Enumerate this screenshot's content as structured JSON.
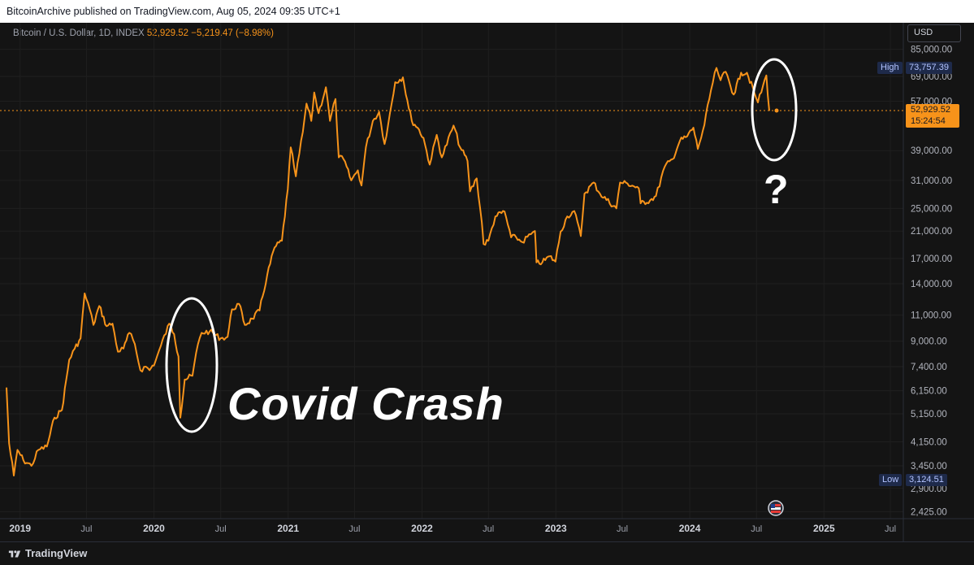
{
  "header": {
    "published": "BitcoinArchive published on TradingView.com, Aug 05, 2024 09:35 UTC+1"
  },
  "legend": {
    "symbol": "Bitcoin / U.S. Dollar, 1D, INDEX",
    "last": "52,929.52",
    "change": "−5,219.47 (−8.98%)"
  },
  "currency": "USD",
  "high_tag": {
    "label": "High",
    "value": "73,757.39"
  },
  "low_tag": {
    "label": "Low",
    "value": "3,124.51"
  },
  "price_tag": {
    "price": "52,929.52",
    "countdown": "15:24:54"
  },
  "annotations": {
    "covid": "Covid Crash",
    "question": "?"
  },
  "footer": {
    "brand": "TradingView"
  },
  "colors": {
    "line": "#f7931a",
    "background": "#141414",
    "text": "#d1d4dc",
    "annotation": "#ffffff"
  },
  "chart_data": {
    "type": "line",
    "title": "Bitcoin / U.S. Dollar, 1D, INDEX",
    "y_scale": "log",
    "ylim": [
      2300,
      90000
    ],
    "y_ticks": [
      {
        "value": 85000,
        "label": "85,000.00"
      },
      {
        "value": 69000,
        "label": "69,000.00"
      },
      {
        "value": 57000,
        "label": "57,000.00"
      },
      {
        "value": 39000,
        "label": "39,000.00"
      },
      {
        "value": 31000,
        "label": "31,000.00"
      },
      {
        "value": 25000,
        "label": "25,000.00"
      },
      {
        "value": 21000,
        "label": "21,000.00"
      },
      {
        "value": 17000,
        "label": "17,000.00"
      },
      {
        "value": 14000,
        "label": "14,000.00"
      },
      {
        "value": 11000,
        "label": "11,000.00"
      },
      {
        "value": 9000,
        "label": "9,000.00"
      },
      {
        "value": 7400,
        "label": "7,400.00"
      },
      {
        "value": 6150,
        "label": "6,150.00"
      },
      {
        "value": 5150,
        "label": "5,150.00"
      },
      {
        "value": 4150,
        "label": "4,150.00"
      },
      {
        "value": 3450,
        "label": "3,450.00"
      },
      {
        "value": 2900,
        "label": "2,900.00"
      },
      {
        "value": 2425,
        "label": "2,425.00"
      }
    ],
    "x_ticks": [
      {
        "date": "2019-01-01",
        "label": "2019",
        "bold": true
      },
      {
        "date": "2019-07-01",
        "label": "Jul",
        "bold": false
      },
      {
        "date": "2020-01-01",
        "label": "2020",
        "bold": true
      },
      {
        "date": "2020-07-01",
        "label": "Jul",
        "bold": false
      },
      {
        "date": "2021-01-01",
        "label": "2021",
        "bold": true
      },
      {
        "date": "2021-07-01",
        "label": "Jul",
        "bold": false
      },
      {
        "date": "2022-01-01",
        "label": "2022",
        "bold": true
      },
      {
        "date": "2022-07-01",
        "label": "Jul",
        "bold": false
      },
      {
        "date": "2023-01-01",
        "label": "2023",
        "bold": true
      },
      {
        "date": "2023-07-01",
        "label": "Jul",
        "bold": false
      },
      {
        "date": "2024-01-01",
        "label": "2024",
        "bold": true
      },
      {
        "date": "2024-07-01",
        "label": "Jul",
        "bold": false
      },
      {
        "date": "2025-01-01",
        "label": "2025",
        "bold": true
      },
      {
        "date": "2025-07-01",
        "label": "Jul",
        "bold": false
      }
    ],
    "xlim": [
      "2018-11-25",
      "2025-08-01"
    ],
    "current_price": 52929.52,
    "series": [
      {
        "points": [
          [
            "2018-11-25",
            6300
          ],
          [
            "2018-12-02",
            4100
          ],
          [
            "2018-12-15",
            3200
          ],
          [
            "2018-12-25",
            3900
          ],
          [
            "2019-01-10",
            3600
          ],
          [
            "2019-02-01",
            3450
          ],
          [
            "2019-02-20",
            3900
          ],
          [
            "2019-03-15",
            4000
          ],
          [
            "2019-04-05",
            5000
          ],
          [
            "2019-04-25",
            5300
          ],
          [
            "2019-05-15",
            7800
          ],
          [
            "2019-05-30",
            8500
          ],
          [
            "2019-06-15",
            9200
          ],
          [
            "2019-06-26",
            13000
          ],
          [
            "2019-07-10",
            11500
          ],
          [
            "2019-07-20",
            10200
          ],
          [
            "2019-08-05",
            11800
          ],
          [
            "2019-08-25",
            10100
          ],
          [
            "2019-09-10",
            10300
          ],
          [
            "2019-09-25",
            8300
          ],
          [
            "2019-10-10",
            8500
          ],
          [
            "2019-10-26",
            9600
          ],
          [
            "2019-11-10",
            8800
          ],
          [
            "2019-11-25",
            7200
          ],
          [
            "2019-12-10",
            7400
          ],
          [
            "2019-12-20",
            7200
          ],
          [
            "2020-01-05",
            7700
          ],
          [
            "2020-01-20",
            8700
          ],
          [
            "2020-02-12",
            10300
          ],
          [
            "2020-02-25",
            9500
          ],
          [
            "2020-03-08",
            8000
          ],
          [
            "2020-03-13",
            5000
          ],
          [
            "2020-03-25",
            6700
          ],
          [
            "2020-04-15",
            6900
          ],
          [
            "2020-04-30",
            8800
          ],
          [
            "2020-05-10",
            9600
          ],
          [
            "2020-06-01",
            9700
          ],
          [
            "2020-07-01",
            9200
          ],
          [
            "2020-07-20",
            9300
          ],
          [
            "2020-08-01",
            11500
          ],
          [
            "2020-08-20",
            12000
          ],
          [
            "2020-09-05",
            10200
          ],
          [
            "2020-09-25",
            10700
          ],
          [
            "2020-10-15",
            11400
          ],
          [
            "2020-11-05",
            15000
          ],
          [
            "2020-11-25",
            18500
          ],
          [
            "2020-12-15",
            19500
          ],
          [
            "2020-12-31",
            29000
          ],
          [
            "2021-01-08",
            40000
          ],
          [
            "2021-01-22",
            32000
          ],
          [
            "2021-02-10",
            45000
          ],
          [
            "2021-02-20",
            56000
          ],
          [
            "2021-03-05",
            49000
          ],
          [
            "2021-03-13",
            61000
          ],
          [
            "2021-03-25",
            52000
          ],
          [
            "2021-04-14",
            63500
          ],
          [
            "2021-04-25",
            49000
          ],
          [
            "2021-05-10",
            58000
          ],
          [
            "2021-05-19",
            37000
          ],
          [
            "2021-06-01",
            36500
          ],
          [
            "2021-06-22",
            31000
          ],
          [
            "2021-07-10",
            33500
          ],
          [
            "2021-07-20",
            29800
          ],
          [
            "2021-08-01",
            40000
          ],
          [
            "2021-08-20",
            49000
          ],
          [
            "2021-09-06",
            52500
          ],
          [
            "2021-09-21",
            41000
          ],
          [
            "2021-10-01",
            48000
          ],
          [
            "2021-10-20",
            66000
          ],
          [
            "2021-11-10",
            68500
          ],
          [
            "2021-11-26",
            54000
          ],
          [
            "2021-12-04",
            49000
          ],
          [
            "2021-12-20",
            46500
          ],
          [
            "2022-01-05",
            43000
          ],
          [
            "2022-01-22",
            35000
          ],
          [
            "2022-02-10",
            44000
          ],
          [
            "2022-02-24",
            37000
          ],
          [
            "2022-03-28",
            47300
          ],
          [
            "2022-04-15",
            40000
          ],
          [
            "2022-05-05",
            36000
          ],
          [
            "2022-05-12",
            28500
          ],
          [
            "2022-05-30",
            31500
          ],
          [
            "2022-06-13",
            22500
          ],
          [
            "2022-06-18",
            19000
          ],
          [
            "2022-07-01",
            19500
          ],
          [
            "2022-07-20",
            23500
          ],
          [
            "2022-08-14",
            24400
          ],
          [
            "2022-09-01",
            20000
          ],
          [
            "2022-09-15",
            20000
          ],
          [
            "2022-10-01",
            19300
          ],
          [
            "2022-10-25",
            20500
          ],
          [
            "2022-11-05",
            21000
          ],
          [
            "2022-11-09",
            16500
          ],
          [
            "2022-11-25",
            16500
          ],
          [
            "2022-12-15",
            17300
          ],
          [
            "2022-12-31",
            16600
          ],
          [
            "2023-01-14",
            20900
          ],
          [
            "2023-02-01",
            23500
          ],
          [
            "2023-02-20",
            24500
          ],
          [
            "2023-03-10",
            20200
          ],
          [
            "2023-03-20",
            28000
          ],
          [
            "2023-04-14",
            30500
          ],
          [
            "2023-05-01",
            28000
          ],
          [
            "2023-06-15",
            25000
          ],
          [
            "2023-06-25",
            30500
          ],
          [
            "2023-07-15",
            30300
          ],
          [
            "2023-08-15",
            29200
          ],
          [
            "2023-08-20",
            26000
          ],
          [
            "2023-09-15",
            26600
          ],
          [
            "2023-10-01",
            27500
          ],
          [
            "2023-10-25",
            34500
          ],
          [
            "2023-11-15",
            36500
          ],
          [
            "2023-12-05",
            42000
          ],
          [
            "2023-12-25",
            43500
          ],
          [
            "2024-01-11",
            46500
          ],
          [
            "2024-01-23",
            39500
          ],
          [
            "2024-02-10",
            47500
          ],
          [
            "2024-02-28",
            62000
          ],
          [
            "2024-03-14",
            73700
          ],
          [
            "2024-03-25",
            67000
          ],
          [
            "2024-04-08",
            71500
          ],
          [
            "2024-04-30",
            60000
          ],
          [
            "2024-05-20",
            71000
          ],
          [
            "2024-06-05",
            71000
          ],
          [
            "2024-06-25",
            61000
          ],
          [
            "2024-07-05",
            56500
          ],
          [
            "2024-07-28",
            69500
          ],
          [
            "2024-08-05",
            52929
          ]
        ]
      }
    ]
  }
}
